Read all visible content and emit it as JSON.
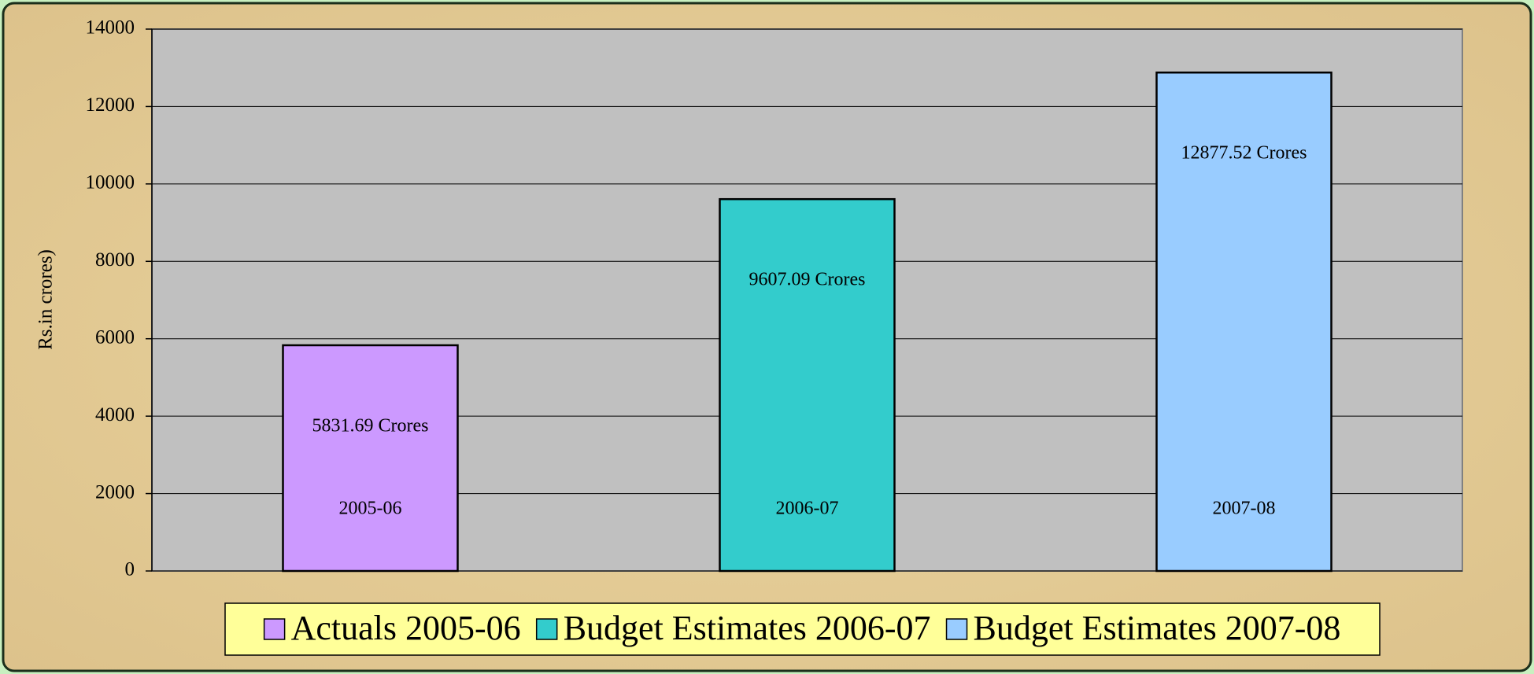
{
  "chart_data": {
    "type": "bar",
    "y_label": "Rs.in crores)",
    "categories": [
      "2005-06",
      "2006-07",
      "2007-08"
    ],
    "values": [
      5831.69,
      9607.09,
      12877.52
    ],
    "value_labels": [
      "5831.69 Crores",
      "9607.09 Crores",
      "12877.52 Crores"
    ],
    "colors": [
      "#cc99ff",
      "#33cccc",
      "#99ccff"
    ],
    "legend": [
      "Actuals 2005-06",
      "Budget Estimates 2006-07",
      "Budget Estimates 2007-08"
    ],
    "ylim": [
      0,
      14000
    ],
    "yticks": [
      0,
      2000,
      4000,
      6000,
      8000,
      10000,
      12000,
      14000
    ],
    "grid": true
  }
}
